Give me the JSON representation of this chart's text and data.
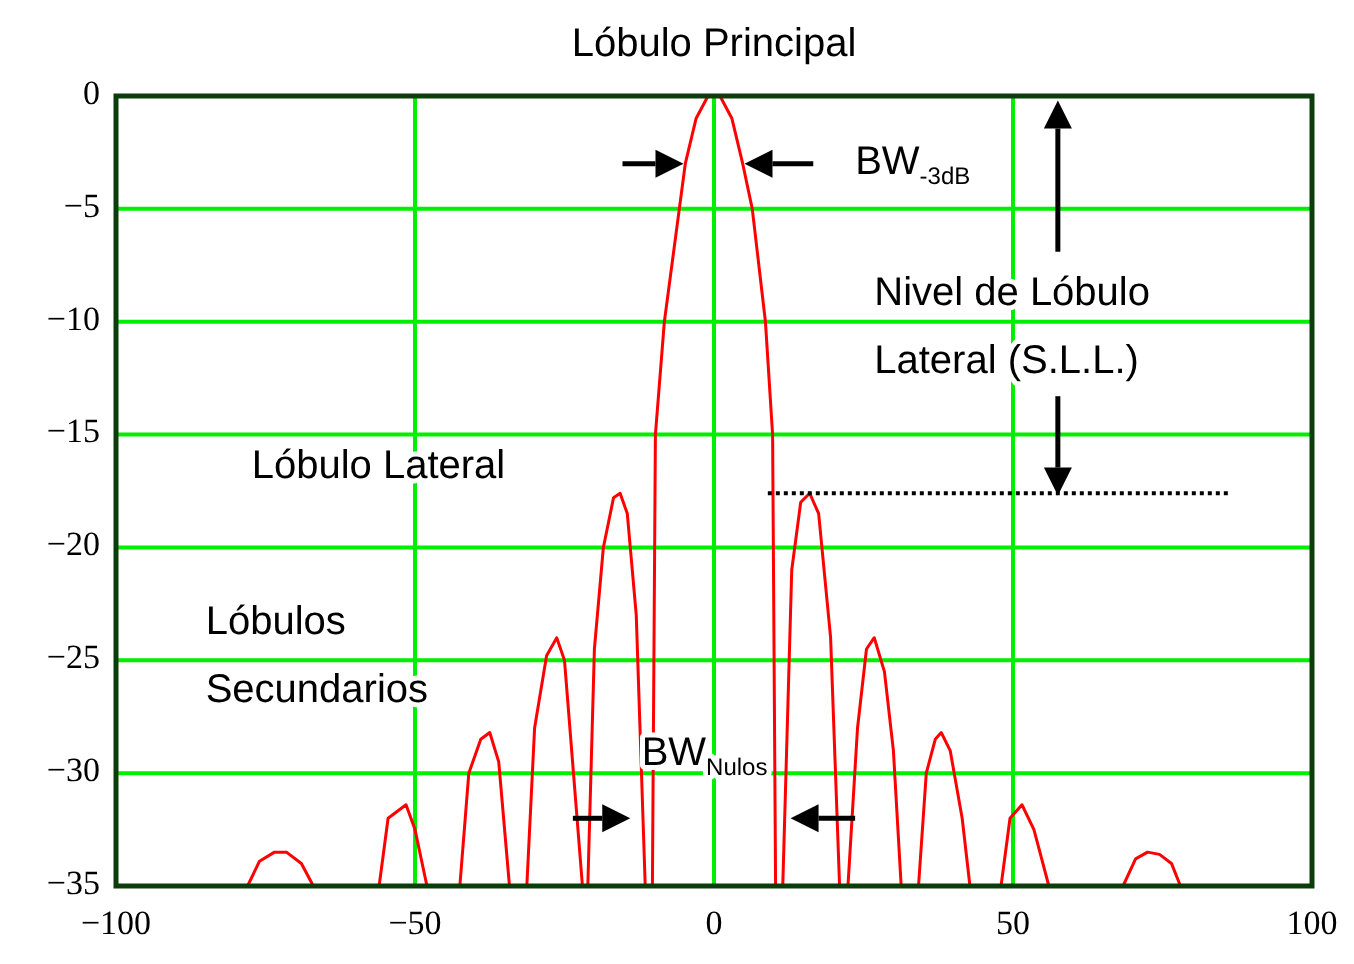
{
  "chart_data": {
    "type": "line",
    "title": "Lóbulo Principal",
    "xlim": [
      -100,
      100
    ],
    "xticks": [
      {
        "value": -100,
        "label": "−100"
      },
      {
        "value": -50,
        "label": "−50"
      },
      0,
      50,
      100
    ],
    "ylim": [
      -35,
      0
    ],
    "yticks": [
      0,
      {
        "value": -5,
        "label": "−5"
      },
      {
        "value": -10,
        "label": "−10"
      },
      {
        "value": -15,
        "label": "−15"
      },
      {
        "value": -20,
        "label": "−20"
      },
      {
        "value": -25,
        "label": "−25"
      },
      {
        "value": -30,
        "label": "−30"
      },
      {
        "value": -35,
        "label": "−35"
      }
    ],
    "grid": true,
    "series": [
      {
        "color": "#ff0000",
        "line_style": "solid",
        "x": [
          -78,
          -76,
          -73.5,
          -71.5,
          -69,
          -67,
          -56,
          -54.5,
          -51.5,
          -50,
          -48,
          -42.5,
          -41,
          -39,
          -37.5,
          -36,
          -34.2,
          -31.3,
          -30,
          -28,
          -26.3,
          -25,
          -23.5,
          -22,
          -21.1,
          -20,
          -18.5,
          -16.8,
          -15.7,
          -14.5,
          -13,
          -11.5,
          -10.3,
          -9.8,
          -8.3,
          -5.8,
          -4.8,
          -3,
          -1,
          1,
          3,
          4.8,
          6.4,
          8.6,
          9.8,
          10.3,
          11.5,
          13,
          14.5,
          16,
          17.5,
          19.5,
          21,
          22.4,
          24,
          25.5,
          26.8,
          28.5,
          30,
          31.3,
          34.2,
          35.5,
          37,
          38,
          39.5,
          41.5,
          42.8,
          48,
          49.5,
          51.5,
          53.5,
          56,
          68.4,
          70.5,
          72.5,
          74.5,
          76.5,
          78
        ],
        "values": [
          -35,
          -33.9,
          -33.5,
          -33.5,
          -34,
          -35,
          -35,
          -32,
          -31.4,
          -32.5,
          -35,
          -35,
          -30,
          -28.5,
          -28.2,
          -29.5,
          -35,
          -35,
          -28,
          -24.8,
          -24,
          -25,
          -30,
          -35,
          -35,
          -24.5,
          -20,
          -17.8,
          -17.6,
          -18.5,
          -23,
          -35,
          -35,
          -15,
          -10,
          -5,
          -3,
          -1,
          0,
          0,
          -1,
          -3,
          -5,
          -10,
          -15,
          -35,
          -35,
          -21,
          -18,
          -17.6,
          -18.5,
          -24,
          -35,
          -35,
          -28,
          -24.5,
          -24,
          -25.5,
          -29,
          -35,
          -35,
          -30,
          -28.5,
          -28.2,
          -29,
          -32,
          -35,
          -35,
          -32,
          -31.4,
          -32.5,
          -35,
          -35,
          -33.8,
          -33.5,
          -33.6,
          -34,
          -35
        ]
      },
      {
        "color": "#000000",
        "line_style": "dotted",
        "x": [
          9,
          86
        ],
        "values": [
          -17.6,
          -17.6
        ]
      }
    ],
    "annotations": [
      "BW$_{-3dB}$",
      "Nivel de Lóbulo\nLateral (S.L.L.)",
      "Lóbulo Lateral",
      "Lóbulos\nSecundarios",
      "BW$_{Nulos}$"
    ]
  }
}
